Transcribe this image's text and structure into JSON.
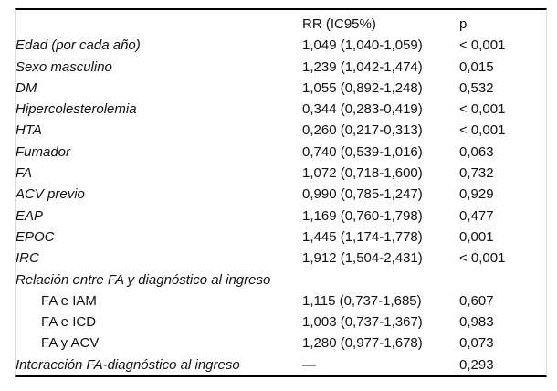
{
  "colors": {
    "background": "#ffffff",
    "text": "#111111",
    "rule": "#000000",
    "side_border": "#dcdcdc"
  },
  "chart_data": {
    "type": "table",
    "columns": [
      "",
      "RR (IC95%)",
      "p"
    ],
    "rows": [
      {
        "label": "Edad (por cada año)",
        "rr": "1,049 (1,040-1,059)",
        "p": "< 0,001",
        "variant": "main"
      },
      {
        "label": "Sexo masculino",
        "rr": "1,239 (1,042-1,474)",
        "p": "0,015",
        "variant": "main"
      },
      {
        "label": "DM",
        "rr": "1,055 (0,892-1,248)",
        "p": "0,532",
        "variant": "main"
      },
      {
        "label": "Hipercolesterolemia",
        "rr": "0,344 (0,283-0,419)",
        "p": "< 0,001",
        "variant": "main"
      },
      {
        "label": "HTA",
        "rr": "0,260 (0,217-0,313)",
        "p": "< 0,001",
        "variant": "main"
      },
      {
        "label": "Fumador",
        "rr": "0,740 (0,539-1,016)",
        "p": "0,063",
        "variant": "main"
      },
      {
        "label": "FA",
        "rr": "1,072 (0,718-1,600)",
        "p": "0,732",
        "variant": "main"
      },
      {
        "label": "ACV previo",
        "rr": "0,990 (0,785-1,247)",
        "p": "0,929",
        "variant": "main"
      },
      {
        "label": "EAP",
        "rr": "1,169 (0,760-1,798)",
        "p": "0,477",
        "variant": "main"
      },
      {
        "label": "EPOC",
        "rr": "1,445 (1,174-1,778)",
        "p": "0,001",
        "variant": "main"
      },
      {
        "label": "IRC",
        "rr": "1,912 (1,504-2,431)",
        "p": "< 0,001",
        "variant": "main"
      },
      {
        "label": "Relación entre FA y diagnóstico al ingreso",
        "rr": "",
        "p": "",
        "variant": "section"
      },
      {
        "label": "FA e IAM",
        "rr": "1,115 (0,737-1,685)",
        "p": "0,607",
        "variant": "sub"
      },
      {
        "label": "FA e ICD",
        "rr": "1,003 (0,737-1,367)",
        "p": "0,983",
        "variant": "sub"
      },
      {
        "label": "FA y ACV",
        "rr": "1,280 (0,977-1,678)",
        "p": "0,073",
        "variant": "sub"
      },
      {
        "label": "Interacción FA-diagnóstico al ingreso",
        "rr": "—",
        "p": "0,293",
        "variant": "main"
      }
    ]
  }
}
